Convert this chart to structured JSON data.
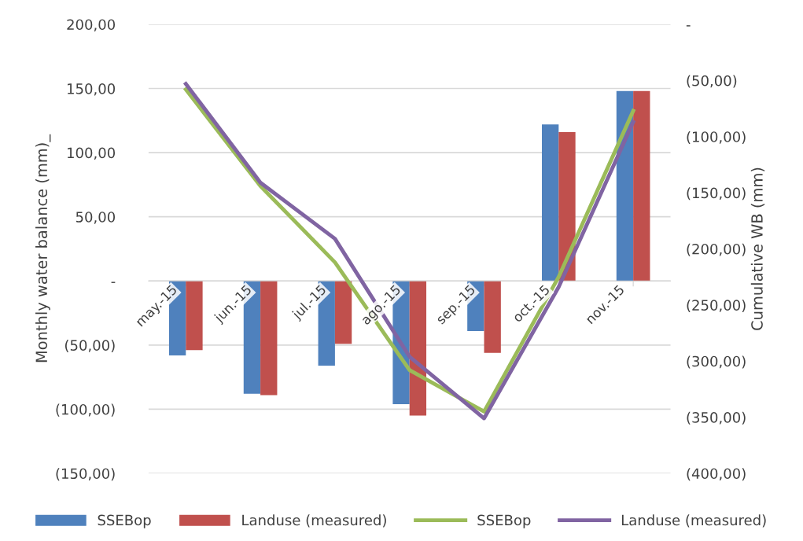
{
  "chart_data": {
    "type": "bar",
    "ylabel": "Monthly water balance (mm)_",
    "y2label": "Cumulative WB (mm)",
    "categories": [
      "may.-15",
      "jun.-15",
      "jul.-15",
      "ago.-15",
      "sep.-15",
      "oct.-15",
      "nov.-15"
    ],
    "series": [
      {
        "name": "SSEBop",
        "color": "#4f81bd",
        "values": [
          -58,
          -88,
          -66,
          -96,
          -39,
          122,
          148
        ]
      },
      {
        "name": "Landuse (measured)",
        "color": "#c0504d",
        "values": [
          -54,
          -89,
          -49,
          -105,
          -56,
          116,
          148
        ]
      },
      {
        "name": "SSEBop",
        "color": "#9bbb59",
        "type": "line",
        "axis": "y2",
        "values": [
          -58,
          -144,
          -212,
          -308,
          -345,
          -225,
          -77
        ]
      },
      {
        "name": "Landuse (measured)",
        "color": "#8064a2",
        "type": "line",
        "axis": "y2",
        "values": [
          -53,
          -141,
          -191,
          -296,
          -351,
          -234,
          -87
        ]
      }
    ],
    "ylim": [
      -150,
      200
    ],
    "yticks": [
      {
        "value": -150,
        "label": "(150,00)"
      },
      {
        "value": -100,
        "label": "(100,00)"
      },
      {
        "value": -50,
        "label": "(50,00)"
      },
      {
        "value": 0,
        "label": "-"
      },
      {
        "value": 50,
        "label": "50,00"
      },
      {
        "value": 100,
        "label": "100,00"
      },
      {
        "value": 150,
        "label": "150,00"
      },
      {
        "value": 200,
        "label": "200,00"
      }
    ],
    "y2lim": [
      -400,
      0
    ],
    "y2ticks": [
      {
        "value": -400,
        "label": "(400,00)"
      },
      {
        "value": -350,
        "label": "(350,00)"
      },
      {
        "value": -300,
        "label": "(300,00)"
      },
      {
        "value": -250,
        "label": "(250,00)"
      },
      {
        "value": -200,
        "label": "(200,00)"
      },
      {
        "value": -150,
        "label": "(150,00)"
      },
      {
        "value": -100,
        "label": "(100,00)"
      },
      {
        "value": -50,
        "label": "(50,00)"
      },
      {
        "value": 0,
        "label": "-"
      }
    ],
    "grid": "y",
    "legend": "bottom",
    "line_style": "solid",
    "marker": "none"
  }
}
